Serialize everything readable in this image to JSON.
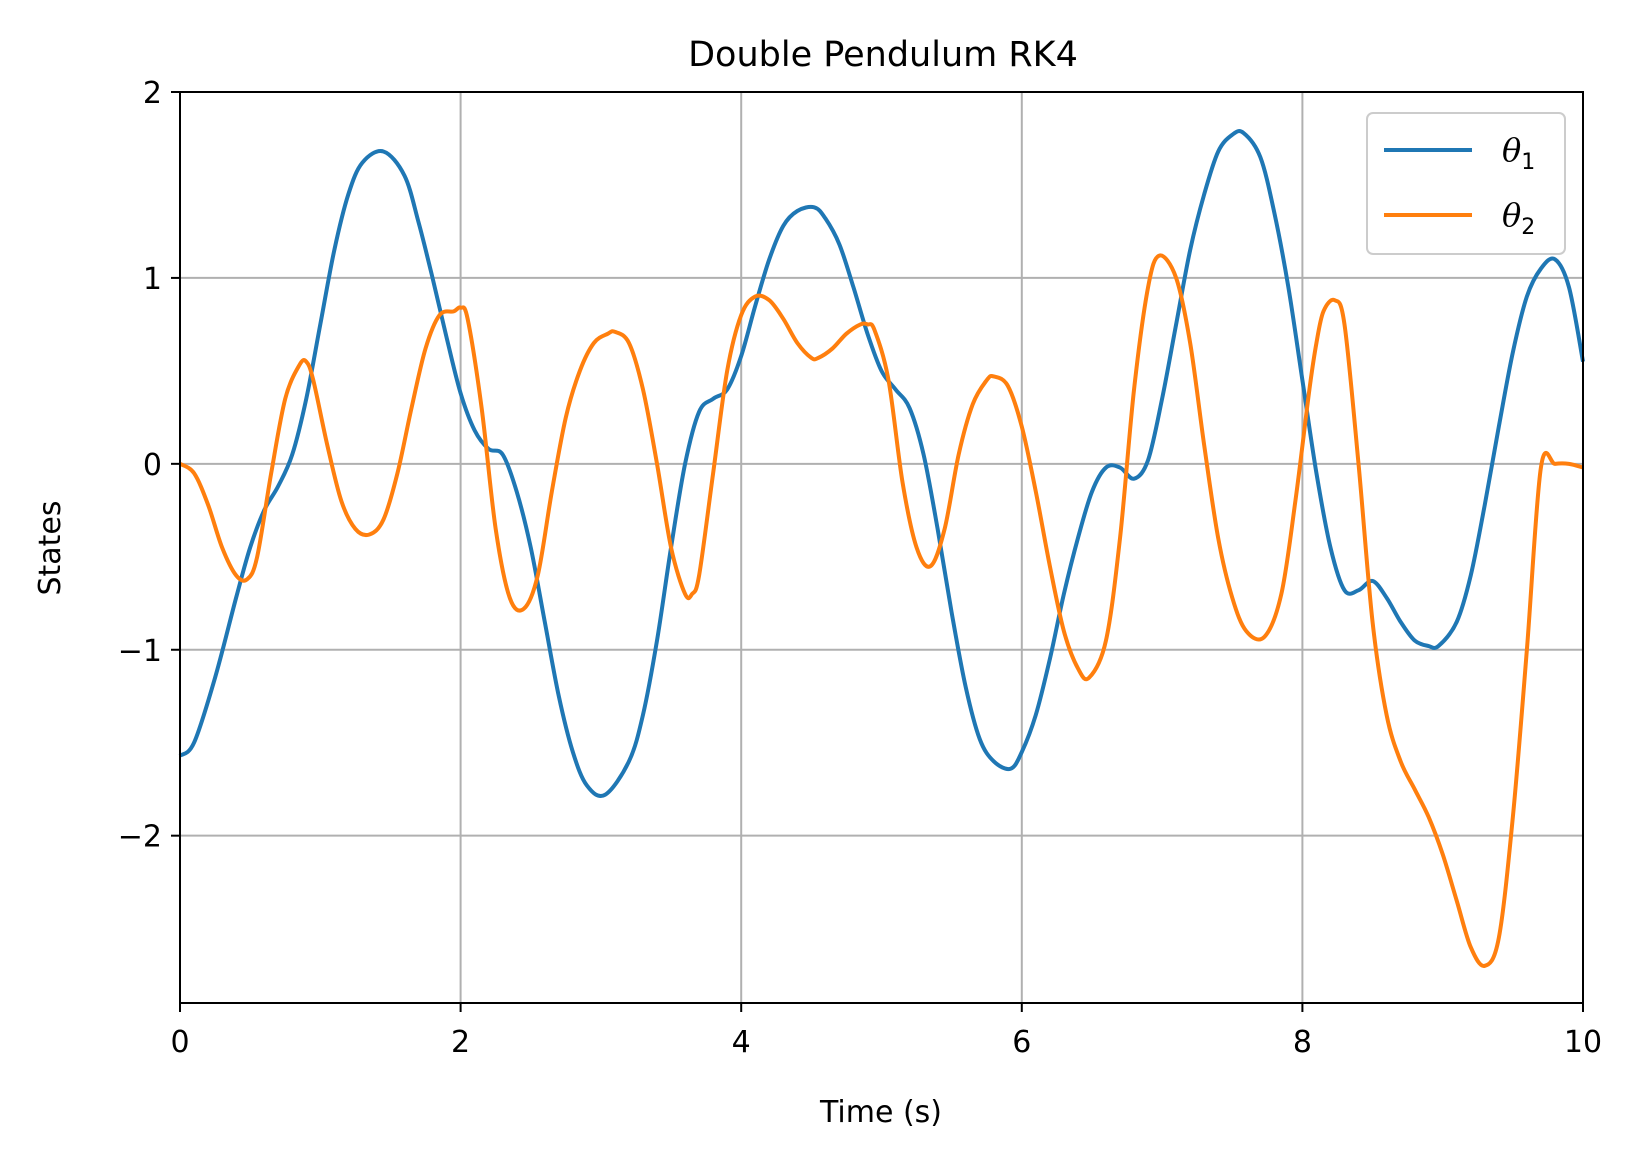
{
  "chart_data": {
    "type": "line",
    "title": "Double Pendulum RK4",
    "xlabel": "Time (s)",
    "ylabel": "States",
    "xlim": [
      0,
      10
    ],
    "ylim": [
      -2.9,
      2.0
    ],
    "xticks": [
      0,
      2,
      4,
      6,
      8,
      10
    ],
    "xtick_labels": [
      "0",
      "2",
      "4",
      "6",
      "8",
      "10"
    ],
    "yticks": [
      2,
      1,
      0,
      -1,
      -2
    ],
    "ytick_labels": [
      "2",
      "1",
      "0",
      "−1",
      "−2"
    ],
    "grid": true,
    "legend_position": "top-right",
    "series": [
      {
        "name": "θ₁",
        "name_base": "θ",
        "name_sub": "1",
        "color": "#1f77b4",
        "x": [
          0,
          0.1,
          0.25,
          0.4,
          0.5,
          0.6,
          0.7,
          0.8,
          0.9,
          1.0,
          1.1,
          1.2,
          1.3,
          1.45,
          1.6,
          1.7,
          1.8,
          1.9,
          2.0,
          2.1,
          2.2,
          2.3,
          2.4,
          2.5,
          2.6,
          2.7,
          2.8,
          2.9,
          3.03,
          3.2,
          3.3,
          3.4,
          3.5,
          3.6,
          3.7,
          3.8,
          3.9,
          4.0,
          4.1,
          4.2,
          4.3,
          4.4,
          4.52,
          4.6,
          4.7,
          4.8,
          4.9,
          5.0,
          5.1,
          5.2,
          5.3,
          5.4,
          5.5,
          5.6,
          5.7,
          5.8,
          5.92,
          6.0,
          6.1,
          6.2,
          6.3,
          6.4,
          6.5,
          6.6,
          6.7,
          6.8,
          6.9,
          7.0,
          7.1,
          7.2,
          7.3,
          7.4,
          7.5,
          7.58,
          7.7,
          7.8,
          7.9,
          8.0,
          8.1,
          8.2,
          8.3,
          8.4,
          8.5,
          8.6,
          8.7,
          8.8,
          8.9,
          8.97,
          9.1,
          9.2,
          9.3,
          9.4,
          9.5,
          9.6,
          9.7,
          9.8,
          9.9,
          10.0
        ],
        "y": [
          -1.57,
          -1.5,
          -1.15,
          -0.72,
          -0.45,
          -0.25,
          -0.12,
          0.05,
          0.35,
          0.75,
          1.15,
          1.45,
          1.62,
          1.68,
          1.55,
          1.3,
          1.0,
          0.68,
          0.38,
          0.18,
          0.08,
          0.05,
          -0.15,
          -0.45,
          -0.85,
          -1.25,
          -1.55,
          -1.73,
          -1.78,
          -1.6,
          -1.35,
          -0.95,
          -0.45,
          0.0,
          0.28,
          0.35,
          0.4,
          0.58,
          0.85,
          1.1,
          1.28,
          1.36,
          1.38,
          1.32,
          1.18,
          0.95,
          0.7,
          0.5,
          0.4,
          0.3,
          0.05,
          -0.35,
          -0.8,
          -1.2,
          -1.48,
          -1.6,
          -1.64,
          -1.55,
          -1.35,
          -1.05,
          -0.7,
          -0.4,
          -0.15,
          -0.02,
          -0.02,
          -0.08,
          0.02,
          0.35,
          0.75,
          1.15,
          1.45,
          1.68,
          1.77,
          1.78,
          1.65,
          1.35,
          0.95,
          0.45,
          -0.05,
          -0.45,
          -0.68,
          -0.68,
          -0.63,
          -0.72,
          -0.85,
          -0.95,
          -0.98,
          -0.98,
          -0.85,
          -0.6,
          -0.22,
          0.2,
          0.6,
          0.9,
          1.05,
          1.1,
          0.95,
          0.55
        ]
      },
      {
        "name": "θ₂",
        "name_base": "θ",
        "name_sub": "2",
        "color": "#ff7f0e",
        "x": [
          0,
          0.1,
          0.2,
          0.3,
          0.4,
          0.48,
          0.55,
          0.65,
          0.75,
          0.85,
          0.9,
          0.95,
          1.05,
          1.15,
          1.25,
          1.35,
          1.45,
          1.55,
          1.65,
          1.75,
          1.85,
          1.95,
          2.0,
          2.05,
          2.15,
          2.25,
          2.35,
          2.45,
          2.55,
          2.65,
          2.75,
          2.85,
          2.95,
          3.05,
          3.1,
          3.2,
          3.3,
          3.4,
          3.5,
          3.6,
          3.65,
          3.7,
          3.8,
          3.9,
          4.0,
          4.1,
          4.2,
          4.3,
          4.4,
          4.5,
          4.55,
          4.65,
          4.75,
          4.85,
          4.9,
          4.95,
          5.05,
          5.15,
          5.25,
          5.35,
          5.45,
          5.55,
          5.65,
          5.75,
          5.8,
          5.9,
          6.0,
          6.1,
          6.2,
          6.3,
          6.4,
          6.48,
          6.6,
          6.7,
          6.8,
          6.9,
          6.98,
          7.1,
          7.2,
          7.3,
          7.4,
          7.5,
          7.6,
          7.73,
          7.85,
          7.95,
          8.05,
          8.1,
          8.15,
          8.23,
          8.3,
          8.4,
          8.5,
          8.6,
          8.7,
          8.8,
          8.9,
          9.0,
          9.1,
          9.2,
          9.3,
          9.4,
          9.5,
          9.6,
          9.7,
          9.8,
          9.9,
          10.0
        ],
        "y": [
          0.0,
          -0.05,
          -0.22,
          -0.45,
          -0.6,
          -0.62,
          -0.5,
          -0.05,
          0.35,
          0.53,
          0.55,
          0.45,
          0.1,
          -0.2,
          -0.35,
          -0.38,
          -0.3,
          -0.05,
          0.3,
          0.62,
          0.8,
          0.82,
          0.84,
          0.78,
          0.3,
          -0.35,
          -0.72,
          -0.78,
          -0.6,
          -0.15,
          0.25,
          0.5,
          0.65,
          0.7,
          0.71,
          0.65,
          0.4,
          0.0,
          -0.45,
          -0.7,
          -0.7,
          -0.6,
          -0.05,
          0.5,
          0.8,
          0.9,
          0.88,
          0.78,
          0.65,
          0.57,
          0.57,
          0.62,
          0.7,
          0.75,
          0.75,
          0.72,
          0.45,
          -0.1,
          -0.45,
          -0.55,
          -0.35,
          0.05,
          0.32,
          0.45,
          0.47,
          0.42,
          0.2,
          -0.15,
          -0.55,
          -0.9,
          -1.1,
          -1.15,
          -0.95,
          -0.4,
          0.4,
          0.95,
          1.12,
          1.0,
          0.65,
          0.1,
          -0.4,
          -0.72,
          -0.9,
          -0.93,
          -0.7,
          -0.2,
          0.4,
          0.65,
          0.82,
          0.88,
          0.75,
          0.0,
          -0.85,
          -1.35,
          -1.6,
          -1.75,
          -1.9,
          -2.1,
          -2.35,
          -2.6,
          -2.7,
          -2.55,
          -1.9,
          -1.0,
          -0.02,
          0.0,
          0.0,
          -0.02
        ]
      }
    ]
  }
}
